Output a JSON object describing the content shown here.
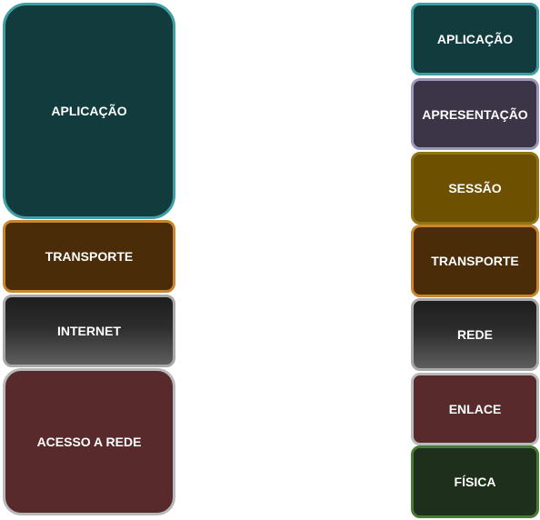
{
  "tcpip_model": {
    "layers": [
      {
        "label": "APLICAÇÃO",
        "fill": "#123b3e",
        "border": "#3d9ea3"
      },
      {
        "label": "TRANSPORTE",
        "fill": "#4a2c08",
        "border": "#c9862e"
      },
      {
        "label": "INTERNET",
        "fill": "gradient-dark",
        "border": "#a9a9a9"
      },
      {
        "label": "ACESSO A REDE",
        "fill": "#592a2c",
        "border": "#b9b9b9"
      }
    ]
  },
  "osi_model": {
    "layers": [
      {
        "label": "APLICAÇÃO",
        "fill": "#123b3e",
        "border": "#3d9ea3"
      },
      {
        "label": "APRESENTAÇÃO",
        "fill": "#3b3547",
        "border": "#9d96bb"
      },
      {
        "label": "SESSÃO",
        "fill": "#6d5100",
        "border": "#8f7412"
      },
      {
        "label": "TRANSPORTE",
        "fill": "#4a2c08",
        "border": "#c9862e"
      },
      {
        "label": "REDE",
        "fill": "gradient-dark",
        "border": "#a9a9a9"
      },
      {
        "label": "ENLACE",
        "fill": "#592a2c",
        "border": "#b9b9b9"
      },
      {
        "label": "FÍSICA",
        "fill": "#1e301b",
        "border": "#4a7a37"
      }
    ]
  }
}
